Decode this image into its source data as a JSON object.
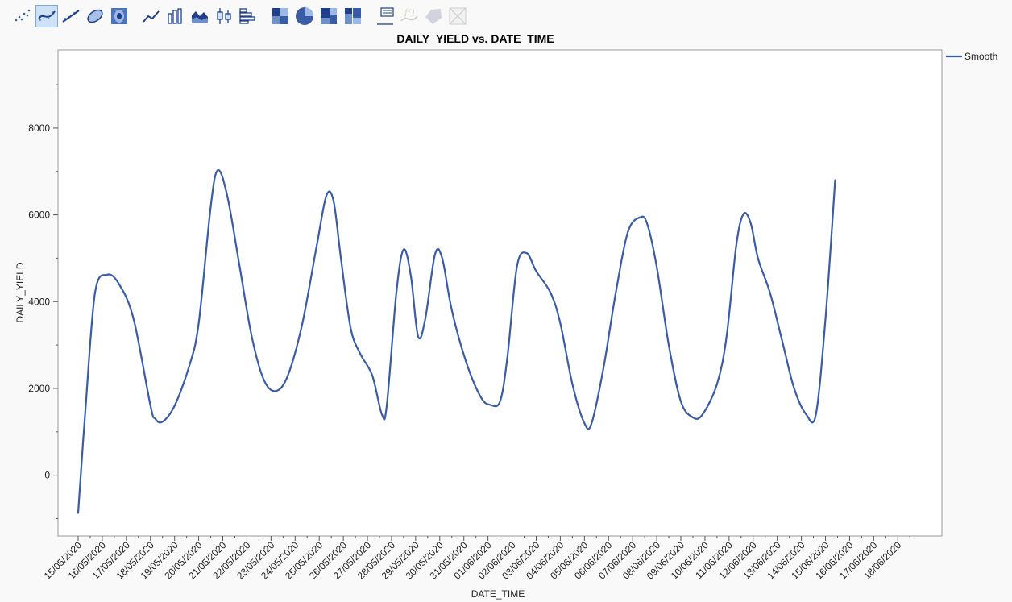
{
  "toolbar": {
    "buttons": [
      {
        "icon": "points-icon",
        "state": "normal"
      },
      {
        "icon": "smoother-icon",
        "state": "active"
      },
      {
        "icon": "line-of-fit-icon",
        "state": "normal"
      },
      {
        "icon": "ellipse-icon",
        "state": "normal"
      },
      {
        "icon": "contour-icon",
        "state": "normal"
      },
      {
        "icon": "line-chart-icon",
        "state": "normal"
      },
      {
        "icon": "bar-chart-icon",
        "state": "normal"
      },
      {
        "icon": "area-chart-icon",
        "state": "normal"
      },
      {
        "icon": "box-plot-icon",
        "state": "normal"
      },
      {
        "icon": "histogram-icon",
        "state": "normal"
      },
      {
        "icon": "heatmap-icon",
        "state": "normal"
      },
      {
        "icon": "pie-chart-icon",
        "state": "normal"
      },
      {
        "icon": "treemap-icon",
        "state": "normal"
      },
      {
        "icon": "mosaic-icon",
        "state": "normal"
      },
      {
        "icon": "caption-box-icon",
        "state": "normal"
      },
      {
        "icon": "formula-icon",
        "state": "disabled"
      },
      {
        "icon": "map-shapes-icon",
        "state": "disabled"
      },
      {
        "icon": "parallel-icon",
        "state": "disabled"
      }
    ]
  },
  "colors": {
    "line": "#3a5ba5",
    "frame": "#9a9a9a",
    "plot_bg": "#ffffff"
  },
  "chart_data": {
    "type": "line",
    "title": "DAILY_YIELD vs. DATE_TIME",
    "xlabel": "DATE_TIME",
    "ylabel": "DAILY_YIELD",
    "ylim": [
      -1400,
      9800
    ],
    "yticks": [
      0,
      2000,
      4000,
      6000,
      8000
    ],
    "categories": [
      "15/05/2020",
      "16/05/2020",
      "17/05/2020",
      "18/05/2020",
      "19/05/2020",
      "20/05/2020",
      "21/05/2020",
      "22/05/2020",
      "23/05/2020",
      "24/05/2020",
      "25/05/2020",
      "26/05/2020",
      "27/05/2020",
      "28/05/2020",
      "29/05/2020",
      "30/05/2020",
      "31/05/2020",
      "01/06/2020",
      "02/06/2020",
      "03/06/2020",
      "04/06/2020",
      "05/06/2020",
      "06/06/2020",
      "07/06/2020",
      "08/06/2020",
      "09/06/2020",
      "10/06/2020",
      "11/06/2020",
      "12/06/2020",
      "13/06/2020",
      "14/06/2020",
      "15/06/2020",
      "16/06/2020",
      "17/06/2020",
      "18/06/2020"
    ],
    "legend": {
      "position": "top-right",
      "entries": [
        "Smooth"
      ]
    },
    "series": [
      {
        "name": "Smooth",
        "points": [
          [
            0.0,
            -870
          ],
          [
            0.3,
            1500
          ],
          [
            0.7,
            4200
          ],
          [
            1.2,
            4620
          ],
          [
            1.7,
            4400
          ],
          [
            2.3,
            3600
          ],
          [
            3.0,
            1600
          ],
          [
            3.2,
            1300
          ],
          [
            3.5,
            1230
          ],
          [
            4.0,
            1600
          ],
          [
            4.6,
            2500
          ],
          [
            5.0,
            3500
          ],
          [
            5.5,
            6200
          ],
          [
            5.8,
            7030
          ],
          [
            6.2,
            6400
          ],
          [
            6.7,
            4800
          ],
          [
            7.2,
            3200
          ],
          [
            7.7,
            2200
          ],
          [
            8.2,
            1940
          ],
          [
            8.7,
            2300
          ],
          [
            9.3,
            3500
          ],
          [
            9.9,
            5300
          ],
          [
            10.3,
            6450
          ],
          [
            10.6,
            6300
          ],
          [
            10.9,
            5000
          ],
          [
            11.3,
            3400
          ],
          [
            11.7,
            2800
          ],
          [
            12.2,
            2300
          ],
          [
            12.6,
            1400
          ],
          [
            12.8,
            1600
          ],
          [
            13.2,
            4200
          ],
          [
            13.5,
            5200
          ],
          [
            13.8,
            4600
          ],
          [
            14.1,
            3200
          ],
          [
            14.4,
            3600
          ],
          [
            14.8,
            5080
          ],
          [
            15.1,
            5000
          ],
          [
            15.5,
            3800
          ],
          [
            16.1,
            2600
          ],
          [
            16.7,
            1800
          ],
          [
            17.1,
            1620
          ],
          [
            17.5,
            1700
          ],
          [
            17.8,
            2700
          ],
          [
            18.2,
            4800
          ],
          [
            18.6,
            5120
          ],
          [
            19.0,
            4700
          ],
          [
            19.6,
            4200
          ],
          [
            20.0,
            3500
          ],
          [
            20.5,
            2100
          ],
          [
            21.0,
            1200
          ],
          [
            21.3,
            1200
          ],
          [
            21.8,
            2500
          ],
          [
            22.3,
            4200
          ],
          [
            22.8,
            5600
          ],
          [
            23.3,
            5940
          ],
          [
            23.6,
            5800
          ],
          [
            24.0,
            4800
          ],
          [
            24.5,
            3000
          ],
          [
            25.0,
            1700
          ],
          [
            25.5,
            1330
          ],
          [
            25.9,
            1400
          ],
          [
            26.5,
            2100
          ],
          [
            26.9,
            3200
          ],
          [
            27.3,
            5300
          ],
          [
            27.6,
            6020
          ],
          [
            27.9,
            5800
          ],
          [
            28.2,
            5000
          ],
          [
            28.7,
            4200
          ],
          [
            29.2,
            3100
          ],
          [
            29.7,
            2000
          ],
          [
            30.2,
            1400
          ],
          [
            30.6,
            1400
          ],
          [
            31.0,
            3600
          ],
          [
            31.4,
            6800
          ]
        ]
      }
    ]
  }
}
